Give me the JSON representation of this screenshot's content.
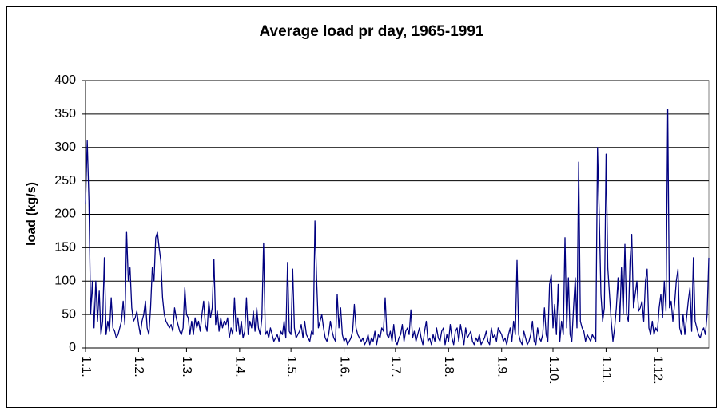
{
  "chart_data": {
    "type": "line",
    "title": "Average load pr day, 1965-1991",
    "y_label": "load (kg/s)",
    "color": "#000080",
    "grid": true,
    "ylim": [
      0,
      400
    ],
    "yticks": [
      0,
      50,
      100,
      150,
      200,
      250,
      300,
      350,
      400
    ],
    "categories": [
      "1.1.",
      null,
      null,
      null,
      null,
      null,
      null,
      null,
      null,
      null,
      null,
      null,
      null,
      null,
      null,
      null,
      null,
      null,
      null,
      null,
      null,
      null,
      null,
      null,
      null,
      null,
      null,
      null,
      null,
      null,
      null,
      "1.2.",
      null,
      null,
      null,
      null,
      null,
      null,
      null,
      null,
      null,
      null,
      null,
      null,
      null,
      null,
      null,
      null,
      null,
      null,
      null,
      null,
      null,
      null,
      null,
      null,
      null,
      null,
      null,
      "1.3.",
      null,
      null,
      null,
      null,
      null,
      null,
      null,
      null,
      null,
      null,
      null,
      null,
      null,
      null,
      null,
      null,
      null,
      null,
      null,
      null,
      null,
      null,
      null,
      null,
      null,
      null,
      null,
      null,
      null,
      null,
      "1.4.",
      null,
      null,
      null,
      null,
      null,
      null,
      null,
      null,
      null,
      null,
      null,
      null,
      null,
      null,
      null,
      null,
      null,
      null,
      null,
      null,
      null,
      null,
      null,
      null,
      null,
      null,
      null,
      null,
      null,
      "1.5.",
      null,
      null,
      null,
      null,
      null,
      null,
      null,
      null,
      null,
      null,
      null,
      null,
      null,
      null,
      null,
      null,
      null,
      null,
      null,
      null,
      null,
      null,
      null,
      null,
      null,
      null,
      null,
      null,
      null,
      null,
      "1.6.",
      null,
      null,
      null,
      null,
      null,
      null,
      null,
      null,
      null,
      null,
      null,
      null,
      null,
      null,
      null,
      null,
      null,
      null,
      null,
      null,
      null,
      null,
      null,
      null,
      null,
      null,
      null,
      null,
      null,
      "1.7.",
      null,
      null,
      null,
      null,
      null,
      null,
      null,
      null,
      null,
      null,
      null,
      null,
      null,
      null,
      null,
      null,
      null,
      null,
      null,
      null,
      null,
      null,
      null,
      null,
      null,
      null,
      null,
      null,
      null,
      null,
      "1.8.",
      null,
      null,
      null,
      null,
      null,
      null,
      null,
      null,
      null,
      null,
      null,
      null,
      null,
      null,
      null,
      null,
      null,
      null,
      null,
      null,
      null,
      null,
      null,
      null,
      null,
      null,
      null,
      null,
      null,
      null,
      "1.9.",
      null,
      null,
      null,
      null,
      null,
      null,
      null,
      null,
      null,
      null,
      null,
      null,
      null,
      null,
      null,
      null,
      null,
      null,
      null,
      null,
      null,
      null,
      null,
      null,
      null,
      null,
      null,
      null,
      null,
      "1.10.",
      null,
      null,
      null,
      null,
      null,
      null,
      null,
      null,
      null,
      null,
      null,
      null,
      null,
      null,
      null,
      null,
      null,
      null,
      null,
      null,
      null,
      null,
      null,
      null,
      null,
      null,
      null,
      null,
      null,
      null,
      "1.11.",
      null,
      null,
      null,
      null,
      null,
      null,
      null,
      null,
      null,
      null,
      null,
      null,
      null,
      null,
      null,
      null,
      null,
      null,
      null,
      null,
      null,
      null,
      null,
      null,
      null,
      null,
      null,
      null,
      null,
      "1.12.",
      null,
      null,
      null,
      null,
      null,
      null,
      null,
      null,
      null,
      null,
      null,
      null,
      null,
      null,
      null,
      null,
      null,
      null,
      null,
      null,
      null,
      null,
      null,
      null,
      null,
      null,
      null,
      null,
      null,
      null
    ],
    "values": [
      215,
      310,
      220,
      50,
      100,
      30,
      100,
      40,
      85,
      20,
      40,
      135,
      20,
      40,
      25,
      75,
      30,
      25,
      15,
      20,
      30,
      40,
      70,
      35,
      173,
      100,
      120,
      60,
      40,
      45,
      55,
      35,
      20,
      40,
      50,
      70,
      30,
      20,
      60,
      120,
      100,
      165,
      173,
      150,
      130,
      75,
      50,
      40,
      35,
      30,
      35,
      25,
      60,
      45,
      35,
      25,
      20,
      30,
      90,
      50,
      45,
      20,
      40,
      20,
      45,
      30,
      40,
      25,
      50,
      70,
      35,
      25,
      70,
      45,
      60,
      133,
      35,
      55,
      25,
      45,
      30,
      40,
      35,
      45,
      15,
      30,
      20,
      75,
      25,
      45,
      20,
      40,
      15,
      25,
      75,
      20,
      40,
      30,
      55,
      25,
      60,
      30,
      20,
      45,
      157,
      20,
      25,
      15,
      30,
      20,
      10,
      15,
      20,
      10,
      25,
      20,
      40,
      15,
      128,
      25,
      20,
      118,
      30,
      15,
      20,
      25,
      35,
      15,
      40,
      20,
      15,
      10,
      25,
      20,
      190,
      100,
      30,
      40,
      50,
      30,
      15,
      10,
      20,
      40,
      25,
      15,
      10,
      80,
      30,
      60,
      20,
      10,
      15,
      5,
      10,
      15,
      25,
      65,
      30,
      20,
      15,
      10,
      15,
      5,
      10,
      20,
      5,
      15,
      10,
      25,
      5,
      20,
      15,
      30,
      25,
      75,
      20,
      15,
      25,
      10,
      35,
      10,
      5,
      15,
      20,
      35,
      10,
      25,
      30,
      20,
      57,
      15,
      25,
      10,
      20,
      30,
      15,
      5,
      25,
      40,
      10,
      15,
      5,
      20,
      10,
      30,
      15,
      10,
      25,
      30,
      5,
      20,
      10,
      35,
      15,
      5,
      25,
      30,
      10,
      35,
      20,
      5,
      30,
      15,
      20,
      25,
      10,
      5,
      15,
      10,
      20,
      5,
      10,
      15,
      25,
      10,
      5,
      30,
      15,
      20,
      10,
      30,
      25,
      20,
      10,
      15,
      5,
      20,
      30,
      10,
      40,
      20,
      131,
      20,
      10,
      5,
      25,
      15,
      5,
      10,
      20,
      40,
      10,
      5,
      30,
      15,
      10,
      20,
      60,
      20,
      10,
      95,
      110,
      30,
      65,
      20,
      95,
      10,
      40,
      20,
      165,
      30,
      105,
      20,
      10,
      60,
      105,
      30,
      278,
      40,
      30,
      25,
      10,
      20,
      15,
      10,
      20,
      15,
      10,
      300,
      200,
      80,
      40,
      60,
      290,
      120,
      80,
      40,
      10,
      30,
      60,
      105,
      40,
      120,
      50,
      155,
      50,
      40,
      130,
      170,
      60,
      80,
      100,
      55,
      60,
      70,
      40,
      100,
      118,
      30,
      20,
      40,
      20,
      30,
      25,
      60,
      80,
      45,
      100,
      55,
      357,
      60,
      70,
      40,
      65,
      100,
      118,
      30,
      20,
      50,
      20,
      45,
      70,
      90,
      25,
      135,
      40,
      30,
      20,
      15,
      25,
      30,
      20,
      50,
      135
    ]
  }
}
